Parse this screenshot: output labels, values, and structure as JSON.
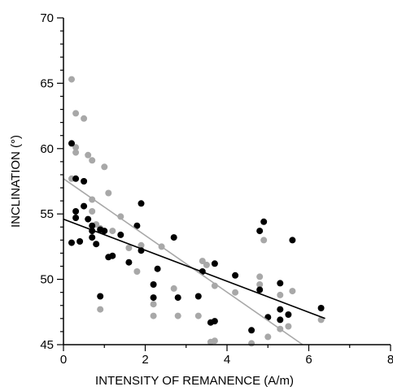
{
  "chart_data": {
    "type": "scatter",
    "title": "",
    "xlabel": "INTENSITY OF REMANENCE (A/m)",
    "ylabel": "INCLINATION (°)",
    "xlim": [
      0,
      8
    ],
    "ylim": [
      45,
      70
    ],
    "x_ticks": [
      "0",
      "2",
      "4",
      "6",
      "8"
    ],
    "y_ticks": [
      "45",
      "50",
      "55",
      "60",
      "65",
      "70"
    ],
    "grid": false,
    "legend": "none",
    "series": [
      {
        "color": "#000000",
        "points": [
          [
            0.2,
            60.4
          ],
          [
            0.3,
            57.7
          ],
          [
            0.2,
            52.8
          ],
          [
            0.3,
            54.7
          ],
          [
            0.3,
            55.2
          ],
          [
            0.4,
            52.9
          ],
          [
            0.5,
            57.5
          ],
          [
            0.5,
            55.6
          ],
          [
            0.6,
            54.6
          ],
          [
            0.7,
            54.1
          ],
          [
            0.7,
            53.7
          ],
          [
            0.7,
            53.2
          ],
          [
            0.8,
            52.7
          ],
          [
            0.9,
            53.8
          ],
          [
            0.9,
            48.7
          ],
          [
            1.0,
            53.7
          ],
          [
            1.1,
            51.7
          ],
          [
            1.2,
            51.8
          ],
          [
            1.4,
            53.4
          ],
          [
            1.6,
            51.3
          ],
          [
            1.8,
            54.1
          ],
          [
            1.9,
            55.8
          ],
          [
            1.9,
            52.2
          ],
          [
            2.2,
            49.6
          ],
          [
            2.2,
            48.6
          ],
          [
            2.3,
            50.8
          ],
          [
            2.7,
            53.2
          ],
          [
            2.8,
            48.6
          ],
          [
            3.3,
            48.7
          ],
          [
            3.4,
            50.6
          ],
          [
            3.6,
            46.7
          ],
          [
            3.7,
            46.8
          ],
          [
            3.7,
            51.2
          ],
          [
            4.2,
            50.3
          ],
          [
            4.6,
            46.1
          ],
          [
            4.8,
            49.2
          ],
          [
            4.8,
            53.7
          ],
          [
            4.9,
            54.4
          ],
          [
            5.0,
            47.1
          ],
          [
            5.3,
            49.7
          ],
          [
            5.3,
            47.7
          ],
          [
            5.3,
            46.9
          ],
          [
            5.5,
            47.3
          ],
          [
            5.6,
            53.0
          ],
          [
            6.3,
            47.8
          ]
        ],
        "trend": [
          [
            0,
            54.6
          ],
          [
            6.4,
            47.0
          ]
        ]
      },
      {
        "color": "#a8a8a8",
        "points": [
          [
            0.2,
            65.3
          ],
          [
            0.3,
            62.7
          ],
          [
            0.3,
            60.1
          ],
          [
            0.3,
            59.7
          ],
          [
            0.2,
            57.7
          ],
          [
            0.5,
            62.3
          ],
          [
            0.5,
            57.5
          ],
          [
            0.6,
            59.5
          ],
          [
            0.7,
            59.1
          ],
          [
            0.7,
            56.1
          ],
          [
            0.7,
            55.2
          ],
          [
            0.8,
            54.2
          ],
          [
            0.9,
            53.9
          ],
          [
            1.0,
            58.6
          ],
          [
            1.1,
            56.6
          ],
          [
            0.9,
            47.7
          ],
          [
            1.2,
            53.7
          ],
          [
            1.4,
            54.8
          ],
          [
            1.6,
            52.4
          ],
          [
            1.8,
            50.6
          ],
          [
            1.9,
            52.6
          ],
          [
            2.2,
            48.1
          ],
          [
            2.2,
            47.2
          ],
          [
            2.4,
            52.5
          ],
          [
            2.7,
            49.3
          ],
          [
            2.8,
            47.2
          ],
          [
            3.3,
            47.2
          ],
          [
            3.4,
            51.4
          ],
          [
            3.5,
            51.1
          ],
          [
            3.6,
            45.2
          ],
          [
            3.7,
            45.3
          ],
          [
            3.7,
            49.5
          ],
          [
            4.2,
            49.0
          ],
          [
            4.6,
            45.1
          ],
          [
            4.8,
            50.2
          ],
          [
            4.8,
            49.6
          ],
          [
            4.9,
            53.0
          ],
          [
            5.0,
            45.6
          ],
          [
            5.3,
            48.8
          ],
          [
            5.3,
            46.2
          ],
          [
            5.5,
            46.4
          ],
          [
            5.6,
            49.1
          ],
          [
            6.3,
            46.9
          ]
        ],
        "trend": [
          [
            0,
            57.7
          ],
          [
            5.85,
            45.0
          ]
        ]
      }
    ]
  }
}
